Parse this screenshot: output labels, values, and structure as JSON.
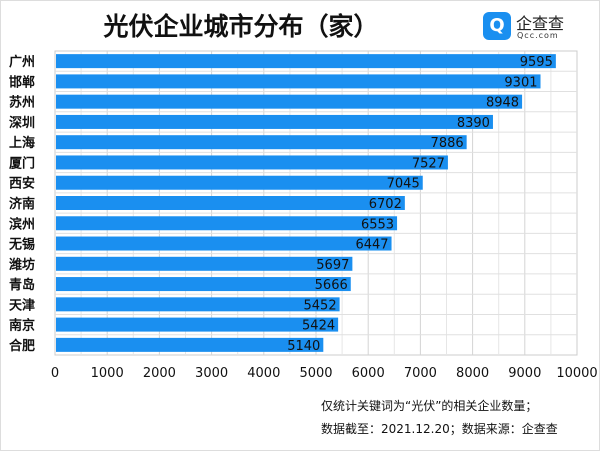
{
  "title": "光伏企业城市分布（家）",
  "logo": {
    "cn": "企查查",
    "en": "Qcc.com",
    "mark": "Q"
  },
  "notes": [
    "仅统计关键词为“光伏”的相关企业数量；",
    "数据截至：2021.12.20；数据来源：企查查"
  ],
  "chart_data": {
    "type": "bar",
    "orientation": "horizontal",
    "title": "光伏企业城市分布（家）",
    "categories": [
      "广州",
      "邯郸",
      "苏州",
      "深圳",
      "上海",
      "厦门",
      "西安",
      "济南",
      "滨州",
      "无锡",
      "潍坊",
      "青岛",
      "天津",
      "南京",
      "合肥"
    ],
    "values": [
      9595,
      9301,
      8948,
      8390,
      7886,
      7527,
      7045,
      6702,
      6553,
      6447,
      5697,
      5666,
      5452,
      5424,
      5140
    ],
    "xlim": [
      0,
      10000
    ],
    "xticks": [
      0,
      1000,
      2000,
      3000,
      4000,
      5000,
      6000,
      7000,
      8000,
      9000,
      10000
    ],
    "grid": true,
    "bar_color": "#1a8ff0"
  }
}
